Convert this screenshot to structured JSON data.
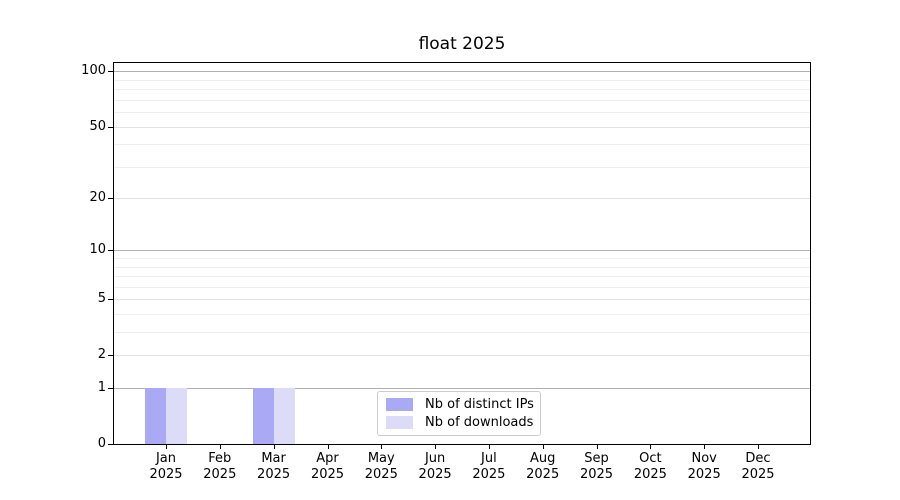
{
  "figure": {
    "background": "#ffffff"
  },
  "chart_data": {
    "type": "bar",
    "title": "float 2025",
    "categories": [
      "Jan 2025",
      "Feb 2025",
      "Mar 2025",
      "Apr 2025",
      "May 2025",
      "Jun 2025",
      "Jul 2025",
      "Aug 2025",
      "Sep 2025",
      "Oct 2025",
      "Nov 2025",
      "Dec 2025"
    ],
    "series": [
      {
        "name": "Nb of distinct IPs",
        "color": "#a9a9f4",
        "values": [
          1,
          0,
          1,
          0,
          0,
          0,
          0,
          0,
          0,
          0,
          0,
          0
        ]
      },
      {
        "name": "Nb of downloads",
        "color": "#dcdcf8",
        "values": [
          1,
          0,
          1,
          0,
          0,
          0,
          0,
          0,
          0,
          0,
          0,
          0
        ]
      }
    ],
    "xlabel": "",
    "ylabel": "",
    "yscale": "log1p",
    "ylim": [
      0,
      111
    ],
    "yticks": [
      0,
      1,
      2,
      5,
      10,
      20,
      50,
      100
    ],
    "yticks_minor": [
      3,
      4,
      6,
      7,
      8,
      9,
      30,
      40,
      60,
      70,
      80,
      90
    ],
    "grid": "horizontal, major and minor",
    "legend_position": "lower center"
  },
  "colors": {
    "axis": "#000000",
    "text": "#000000",
    "grid_decade": "#b0b0b0",
    "grid_major": "#e2e2e2",
    "grid_minor": "#eeeeee",
    "legend_border": "#cccccc",
    "legend_background": "rgba(255,255,255,0.8)"
  }
}
